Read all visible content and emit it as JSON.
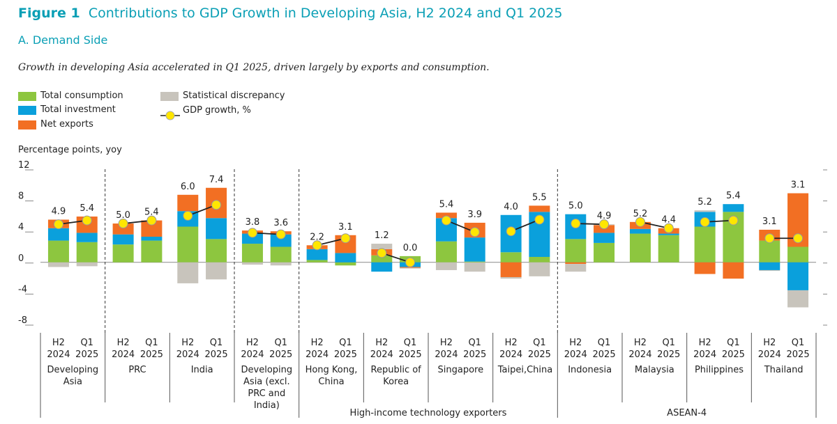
{
  "chart_data": {
    "type": "bar",
    "figure_label": "Figure 1",
    "title": "Contributions to GDP Growth in Developing Asia, H2 2024 and Q1 2025",
    "subtitle": "A.  Demand Side",
    "note": "Growth in developing Asia accelerated in Q1 2025, driven largely by exports and consumption.",
    "y_label": "Percentage points, yoy",
    "ylim": [
      -8,
      12
    ],
    "yticks": [
      12,
      8,
      4,
      0,
      -4,
      -8
    ],
    "categories": [
      "H2 2024",
      "Q1 2025",
      "H2 2024",
      "Q1 2025",
      "H2 2024",
      "Q1 2025",
      "H2 2024",
      "Q1 2025",
      "H2 2024",
      "Q1 2025",
      "H2 2024",
      "Q1 2025",
      "H2 2024",
      "Q1 2025",
      "H2 2024",
      "Q1 2025",
      "H2 2024",
      "Q1 2025",
      "H2 2024",
      "Q1 2025",
      "H2 2024",
      "Q1 2025",
      "H2 2024",
      "Q1 2025"
    ],
    "groups": [
      "Developing Asia",
      "PRC",
      "India",
      "Developing Asia (excl. PRC and India)",
      "Hong Kong, China",
      "Republic of Korea",
      "Singapore",
      "Taipei,China",
      "Indonesia",
      "Malaysia",
      "Philippines",
      "Thailand"
    ],
    "supergroups": [
      "High-income technology exporters",
      "ASEAN-4"
    ],
    "series": [
      {
        "name": "Total consumption",
        "color": "#8dc63f",
        "values": [
          2.8,
          2.6,
          2.3,
          2.8,
          4.6,
          3.0,
          2.4,
          2.0,
          0.3,
          -0.4,
          0.9,
          0.8,
          2.7,
          0.1,
          1.3,
          0.7,
          3.0,
          2.5,
          3.7,
          3.5,
          4.6,
          6.5,
          2.8,
          2.0
        ]
      },
      {
        "name": "Total investment",
        "color": "#0aa0dc",
        "values": [
          1.6,
          1.2,
          1.3,
          0.5,
          2.0,
          2.7,
          1.3,
          1.6,
          1.4,
          1.2,
          -1.2,
          -0.6,
          3.0,
          3.1,
          4.8,
          5.8,
          3.2,
          1.3,
          0.6,
          0.2,
          1.9,
          1.0,
          -1.0,
          -3.6
        ]
      },
      {
        "name": "Net exports",
        "color": "#f26f23",
        "values": [
          1.1,
          2.1,
          1.4,
          2.1,
          2.1,
          3.9,
          0.4,
          0.4,
          0.5,
          2.3,
          0.8,
          -0.1,
          0.7,
          1.9,
          -1.9,
          0.8,
          -0.2,
          1.0,
          0.9,
          0.7,
          -1.5,
          -2.1,
          1.4,
          6.9
        ]
      },
      {
        "name": "Statistical discrepancy",
        "color": "#c8c4bc",
        "values": [
          -0.6,
          -0.5,
          0,
          0,
          -2.7,
          -2.2,
          -0.3,
          -0.4,
          0,
          0,
          0.7,
          -0.1,
          -1.0,
          -1.2,
          -0.2,
          -1.8,
          -1.0,
          0.1,
          0,
          0,
          0.2,
          0,
          -0.1,
          -2.2
        ]
      }
    ],
    "line": {
      "name": "GDP growth, %",
      "color": "#ffe600",
      "values": [
        4.9,
        5.4,
        5.0,
        5.4,
        6.0,
        7.4,
        3.8,
        3.6,
        2.2,
        3.1,
        1.2,
        0.0,
        5.4,
        3.9,
        4.0,
        5.5,
        5.0,
        4.9,
        5.2,
        4.4,
        5.2,
        5.4,
        3.1,
        3.1
      ],
      "value_labels": [
        "4.9",
        "5.4",
        "5.0",
        "5.4",
        "6.0",
        "7.4",
        "3.8",
        "3.6",
        "2.2",
        "3.1",
        "1.2",
        "0.0",
        "5.4",
        "3.9",
        "4.0",
        "5.5",
        "5.0",
        "4.9",
        "5.2",
        "4.4",
        "5.2",
        "5.4",
        "3.1",
        "3.1"
      ]
    }
  }
}
